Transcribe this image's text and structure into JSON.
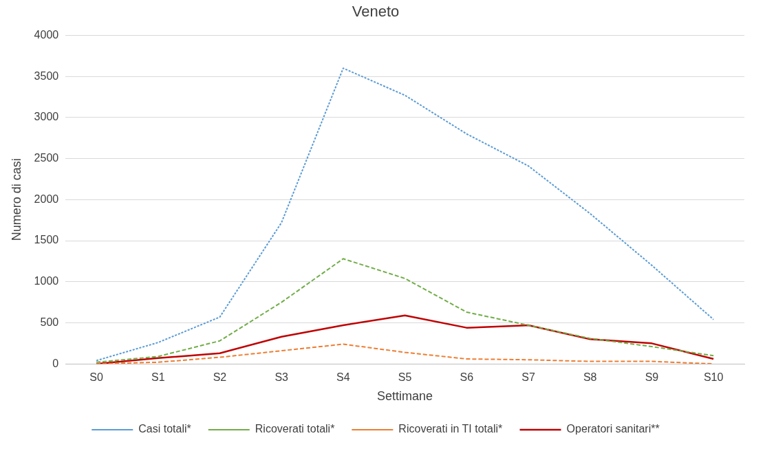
{
  "chart_data": {
    "type": "line",
    "title": "Veneto",
    "xlabel": "Settimane",
    "ylabel": "Numero di casi",
    "categories": [
      "S0",
      "S1",
      "S2",
      "S3",
      "S4",
      "S5",
      "S6",
      "S7",
      "S8",
      "S9",
      "S10"
    ],
    "series": [
      {
        "name": "Casi totali*",
        "color": "#5b9bd5",
        "line_style": "dotted",
        "values": [
          40,
          260,
          570,
          1720,
          3600,
          3270,
          2800,
          2410,
          1830,
          1200,
          540
        ]
      },
      {
        "name": "Ricoverati totali*",
        "color": "#70ad47",
        "line_style": "dashed",
        "values": [
          20,
          90,
          280,
          750,
          1280,
          1040,
          630,
          470,
          310,
          210,
          100
        ]
      },
      {
        "name": "Ricoverati in TI totali*",
        "color": "#ed7d31",
        "line_style": "dashed",
        "values": [
          0,
          20,
          80,
          160,
          240,
          140,
          60,
          50,
          30,
          30,
          0
        ]
      },
      {
        "name": "Operatori sanitari**",
        "color": "#c00000",
        "line_style": "solid",
        "values": [
          0,
          70,
          130,
          330,
          470,
          590,
          440,
          470,
          300,
          250,
          60
        ]
      }
    ],
    "ylim": [
      0,
      4000
    ],
    "yticks": [
      0,
      500,
      1000,
      1500,
      2000,
      2500,
      3000,
      3500,
      4000
    ],
    "grid": "y",
    "legend": "bottom",
    "marker": "none"
  }
}
